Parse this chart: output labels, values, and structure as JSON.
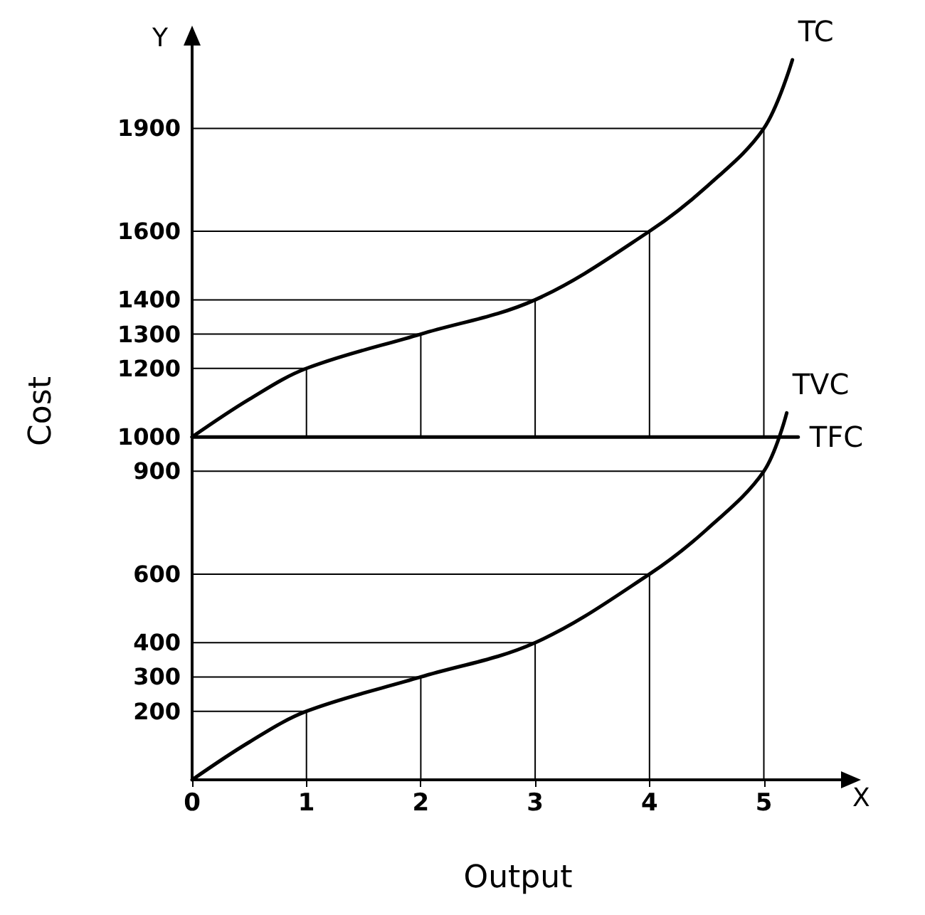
{
  "chart_data": {
    "type": "line",
    "xlabel": "Output",
    "ylabel": "Cost",
    "annotations": [
      "Y",
      "X"
    ],
    "series": [
      {
        "name": "TC",
        "color": "#000000",
        "x": [
          0,
          0.5,
          1,
          2,
          3,
          4,
          4.5,
          5,
          5.25
        ],
        "values": [
          1000,
          1110,
          1200,
          1300,
          1400,
          1600,
          1730,
          1900,
          2100
        ]
      },
      {
        "name": "TVC",
        "color": "#000000",
        "x": [
          0,
          0.5,
          1,
          2,
          3,
          4,
          4.5,
          5,
          5.2
        ],
        "values": [
          0,
          110,
          200,
          300,
          400,
          600,
          730,
          900,
          1070
        ]
      },
      {
        "name": "TFC",
        "color": "#000000",
        "x": [
          0,
          5.3
        ],
        "values": [
          1000,
          1000
        ]
      },
      {
        "color": "#000000",
        "x": [
          0,
          1,
          1
        ],
        "values": [
          1200,
          1200,
          1000
        ]
      },
      {
        "color": "#000000",
        "x": [
          0,
          2,
          2
        ],
        "values": [
          1300,
          1300,
          1000
        ]
      },
      {
        "color": "#000000",
        "x": [
          0,
          3,
          3
        ],
        "values": [
          1400,
          1400,
          1000
        ]
      },
      {
        "color": "#000000",
        "x": [
          0,
          4,
          4
        ],
        "values": [
          1600,
          1600,
          1000
        ]
      },
      {
        "color": "#000000",
        "x": [
          0,
          5,
          5
        ],
        "values": [
          1900,
          1900,
          1000
        ]
      },
      {
        "color": "#000000",
        "x": [
          0,
          1,
          1
        ],
        "values": [
          200,
          200,
          0
        ]
      },
      {
        "color": "#000000",
        "x": [
          0,
          2,
          2
        ],
        "values": [
          300,
          300,
          0
        ]
      },
      {
        "color": "#000000",
        "x": [
          0,
          3,
          3
        ],
        "values": [
          400,
          400,
          0
        ]
      },
      {
        "color": "#000000",
        "x": [
          0,
          4,
          4
        ],
        "values": [
          600,
          600,
          0
        ]
      },
      {
        "color": "#000000",
        "x": [
          0,
          5,
          5
        ],
        "values": [
          900,
          900,
          0
        ]
      }
    ],
    "xlim": [
      0,
      5.7
    ],
    "xticks": [
      0,
      1,
      2,
      3,
      4,
      5
    ],
    "ylim": [
      0,
      2150
    ],
    "yticks": [
      200,
      300,
      400,
      600,
      900,
      1000,
      1200,
      1300,
      1400,
      1600,
      1900
    ],
    "grid": false,
    "legend": false,
    "marker": "none",
    "line_style": "solid"
  }
}
